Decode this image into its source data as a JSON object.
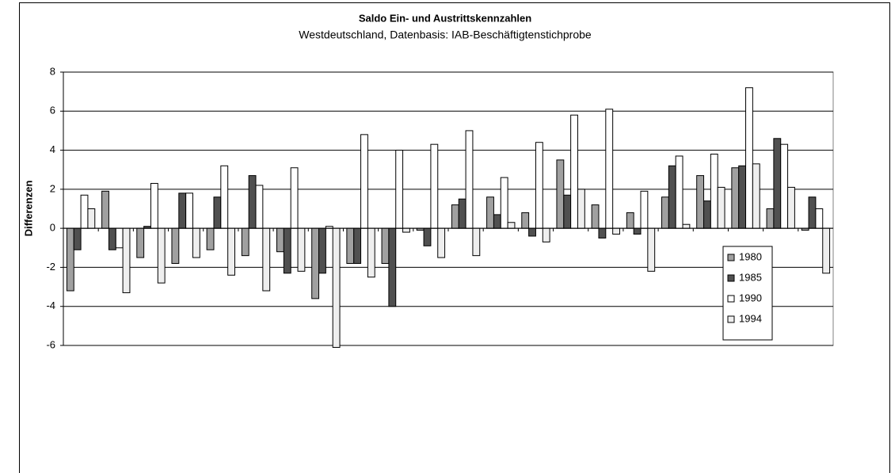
{
  "chart_data": {
    "type": "bar",
    "title": "Saldo Ein- und Austrittskennzahlen",
    "subtitle": "Westdeutschland, Datenbasis: IAB-Beschäftigtenstichprobe",
    "y_label": "Differenzen",
    "categories": [
      null,
      null,
      null,
      null,
      null,
      null,
      null,
      null,
      null,
      null,
      null,
      null,
      null,
      null,
      null,
      null,
      null,
      null,
      null,
      null,
      null,
      null
    ],
    "series": [
      {
        "name": "1980",
        "color": "#a0a0a0",
        "values": [
          -3.2,
          1.9,
          -1.5,
          -1.8,
          -1.1,
          -1.4,
          -1.2,
          -3.6,
          -1.8,
          -1.8,
          -0.1,
          1.2,
          1.6,
          0.8,
          3.5,
          1.2,
          0.8,
          1.6,
          2.7,
          3.1,
          1.0,
          -0.1
        ]
      },
      {
        "name": "1985",
        "color": "#505050",
        "values": [
          -1.1,
          -1.1,
          0.1,
          1.8,
          1.6,
          2.7,
          -2.3,
          -2.3,
          -1.8,
          -4.0,
          -0.9,
          1.5,
          0.7,
          -0.4,
          1.7,
          -0.5,
          -0.3,
          3.2,
          1.4,
          3.2,
          4.6,
          1.6
        ]
      },
      {
        "name": "1990",
        "color": "#ffffff",
        "values": [
          1.7,
          -1.0,
          2.3,
          1.8,
          3.2,
          2.2,
          3.1,
          0.1,
          4.8,
          4.0,
          4.3,
          5.0,
          2.6,
          4.4,
          5.8,
          6.1,
          1.9,
          3.7,
          3.8,
          7.2,
          4.3,
          1.0
        ]
      },
      {
        "name": "1994",
        "color": "#eeeeee",
        "values": [
          1.0,
          -3.3,
          -2.8,
          -1.5,
          -2.4,
          -3.2,
          -2.2,
          -6.1,
          -2.5,
          -0.2,
          -1.5,
          -1.4,
          0.3,
          -0.7,
          2.0,
          -0.3,
          -2.2,
          0.2,
          2.1,
          3.3,
          2.1,
          -2.3
        ]
      }
    ],
    "ylim": [
      -6,
      8
    ],
    "yticks": [
      -6,
      -4,
      -2,
      0,
      2,
      4,
      6,
      8
    ],
    "grid": true,
    "legend": "right"
  }
}
